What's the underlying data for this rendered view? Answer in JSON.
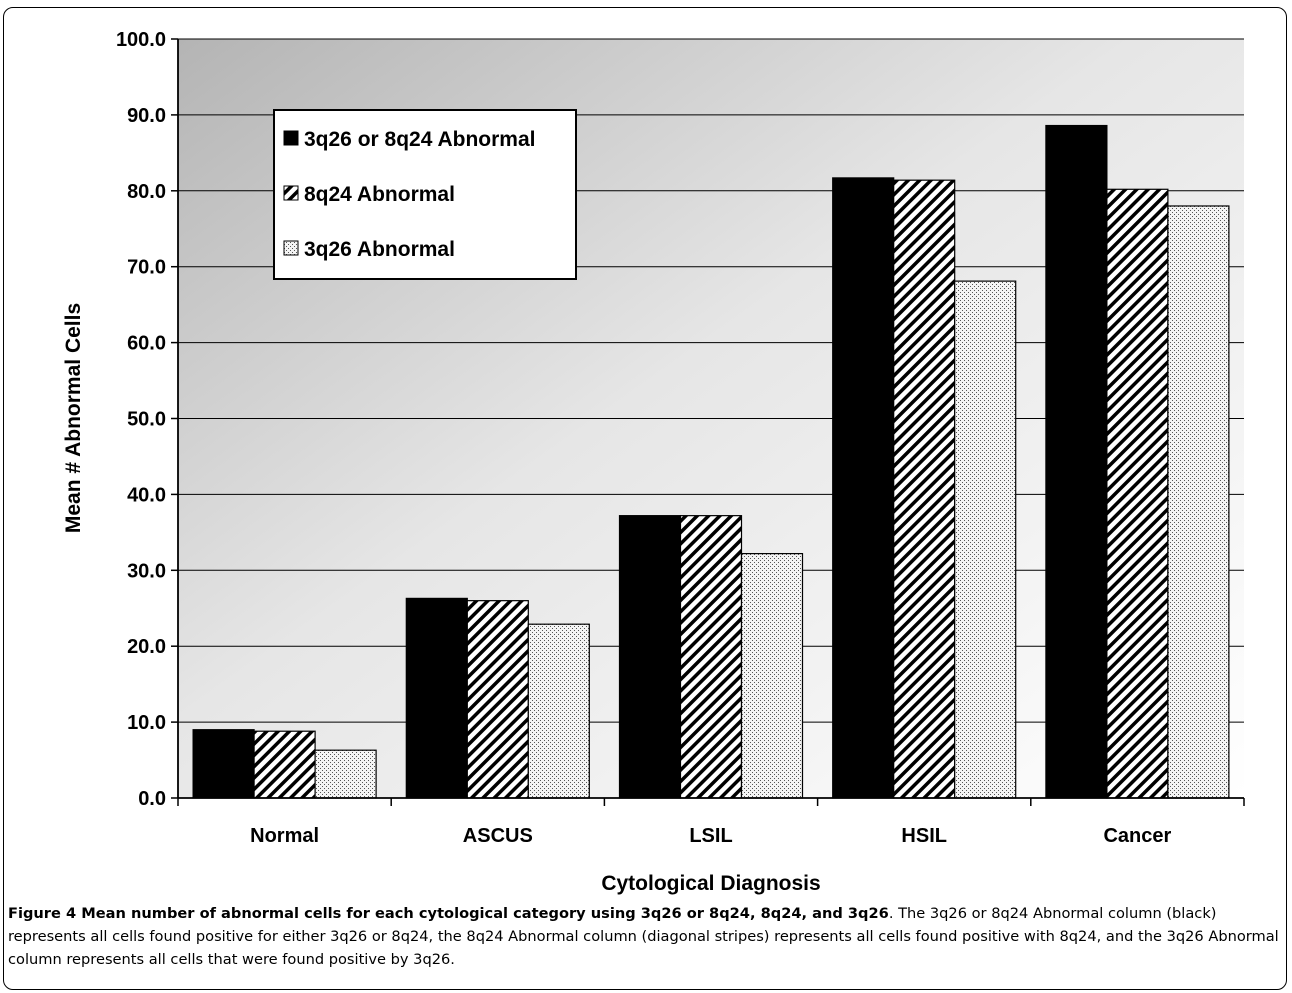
{
  "chart_data": {
    "type": "bar",
    "categories": [
      "Normal",
      "ASCUS",
      "LSIL",
      "HSIL",
      "Cancer"
    ],
    "series": [
      {
        "name": "3q26 or 8q24 Abnormal",
        "values": [
          9.0,
          26.3,
          37.2,
          81.7,
          88.6
        ],
        "pattern": "solid"
      },
      {
        "name": "8q24 Abnormal",
        "values": [
          8.8,
          26.0,
          37.2,
          81.4,
          80.2
        ],
        "pattern": "diagonal-stripes"
      },
      {
        "name": "3q26 Abnormal",
        "values": [
          6.3,
          22.9,
          32.2,
          68.1,
          78.0
        ],
        "pattern": "dotted"
      }
    ],
    "xlabel": "Cytological Diagnosis",
    "ylabel": "Mean # Abnormal Cells",
    "ylim": [
      0,
      100
    ],
    "yticks": [
      "0.0",
      "10.0",
      "20.0",
      "30.0",
      "40.0",
      "50.0",
      "60.0",
      "70.0",
      "80.0",
      "90.0",
      "100.0"
    ],
    "grid": true,
    "legend_position": "top-left"
  },
  "caption": {
    "title": "Figure 4 Mean number of abnormal cells for each cytological category using 3q26 or 8q24, 8q24, and 3q26",
    "body": ". The 3q26 or 8q24 Abnormal column (black) represents all cells found positive for either 3q26 or 8q24, the 8q24 Abnormal column (diagonal stripes) represents all cells found positive with 8q24, and the 3q26 Abnormal column represents all cells that were found positive by 3q26."
  }
}
